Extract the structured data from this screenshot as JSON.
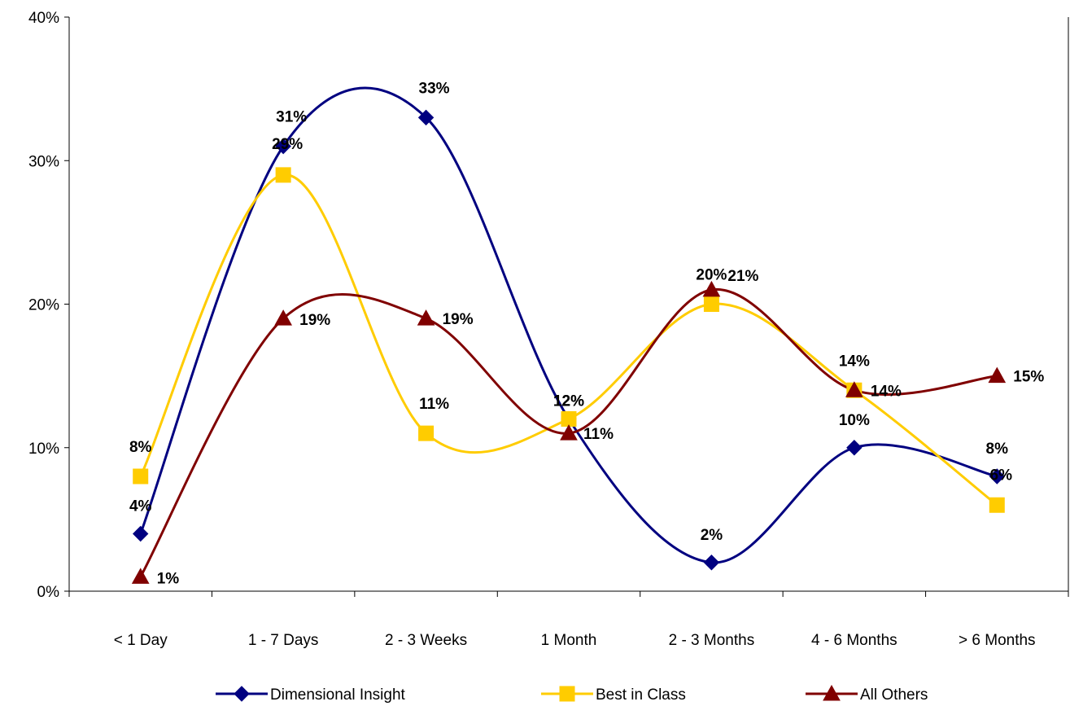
{
  "chart_data": {
    "type": "line",
    "categories": [
      "< 1 Day",
      "1 - 7 Days",
      "2 - 3 Weeks",
      "1 Month",
      "2 - 3 Months",
      "4 - 6 Months",
      "> 6 Months"
    ],
    "ylim": [
      0,
      40
    ],
    "y_ticks": [
      "0%",
      "10%",
      "20%",
      "30%",
      "40%"
    ],
    "series": [
      {
        "name": "Dimensional Insight",
        "color": "#000080",
        "marker": "diamond",
        "values": [
          4,
          31,
          33,
          12,
          2,
          10,
          8
        ],
        "labels": [
          "4%",
          "31%",
          "33%",
          "12%",
          "2%",
          "10%",
          "8%"
        ]
      },
      {
        "name": "Best in Class",
        "color": "#FFCC00",
        "marker": "square",
        "values": [
          8,
          29,
          11,
          12,
          20,
          14,
          6
        ],
        "labels": [
          "8%",
          "29%",
          "11%",
          "12%",
          "20%",
          "14%",
          "6%"
        ]
      },
      {
        "name": "All Others",
        "color": "#800000",
        "marker": "triangle",
        "values": [
          1,
          19,
          19,
          11,
          21,
          14,
          15
        ],
        "labels": [
          "1%",
          "19%",
          "19%",
          "11%",
          "21%",
          "14%",
          "15%"
        ]
      }
    ],
    "grid": false,
    "legend_position": "bottom",
    "smooth": true
  }
}
